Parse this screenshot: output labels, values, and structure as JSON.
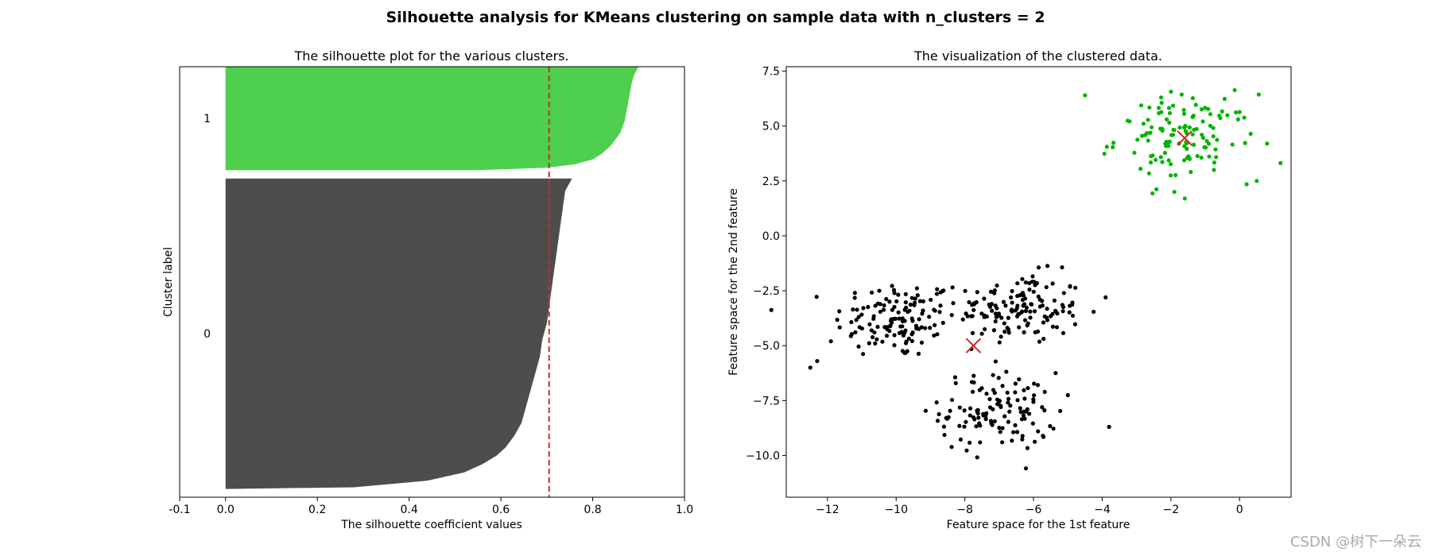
{
  "suptitle": "Silhouette analysis for KMeans clustering on sample data with n_clusters = 2",
  "watermark": "CSDN @树下一朵云",
  "colors": {
    "cluster0": "#4d4d4d",
    "cluster1": "#4ed04e",
    "scatter0": "#000000",
    "scatter1": "#00b400",
    "avg_line": "#d62728",
    "centers": "#d62728"
  },
  "chart_data": [
    {
      "type": "area",
      "title": "The silhouette plot for the various clusters.",
      "xlabel": "The silhouette coefficient values",
      "ylabel": "Cluster label",
      "xlim": [
        -0.1,
        1.0
      ],
      "ylim": [
        0,
        520
      ],
      "xticks": [
        "-0.1",
        "0.0",
        "0.2",
        "0.4",
        "0.6",
        "0.8",
        "1.0"
      ],
      "average_silhouette": 0.705,
      "clusters": [
        {
          "label": "0",
          "y_range": [
            10,
            385
          ],
          "profile_y": [
            10,
            12,
            20,
            30,
            40,
            50,
            60,
            75,
            90,
            110,
            130,
            150,
            170,
            190,
            210,
            230,
            250,
            270,
            290,
            310,
            330,
            350,
            370,
            385
          ],
          "profile_x": [
            0.0,
            0.28,
            0.44,
            0.52,
            0.56,
            0.59,
            0.61,
            0.63,
            0.645,
            0.655,
            0.665,
            0.675,
            0.685,
            0.69,
            0.7,
            0.705,
            0.71,
            0.715,
            0.72,
            0.725,
            0.73,
            0.735,
            0.74,
            0.755
          ]
        },
        {
          "label": "1",
          "y_range": [
            395,
            520
          ],
          "profile_y": [
            395,
            398,
            402,
            408,
            415,
            425,
            440,
            455,
            470,
            485,
            500,
            510,
            520
          ],
          "profile_x": [
            0.55,
            0.7,
            0.76,
            0.8,
            0.82,
            0.84,
            0.86,
            0.87,
            0.875,
            0.88,
            0.885,
            0.89,
            0.9
          ]
        }
      ]
    },
    {
      "type": "scatter",
      "title": "The visualization of the clustered data.",
      "xlabel": "Feature space for the 1st feature",
      "ylabel": "Feature space for the 2nd feature",
      "xlim": [
        -13.2,
        1.5
      ],
      "ylim": [
        -11.9,
        7.7
      ],
      "xticks": [
        "-12",
        "-10",
        "-8",
        "-6",
        "-4",
        "-2",
        "0"
      ],
      "yticks": [
        "7.5",
        "5.0",
        "2.5",
        "0.0",
        "-2.5",
        "-5.0",
        "-7.5",
        "-10.0"
      ],
      "centers": [
        {
          "x": -7.75,
          "y": -5.0
        },
        {
          "x": -1.6,
          "y": 4.45
        }
      ],
      "groups": [
        {
          "cx": -10.0,
          "cy": -3.8,
          "sx": 0.9,
          "sy": 0.9,
          "n": 130,
          "cluster": 0
        },
        {
          "cx": -6.4,
          "cy": -3.3,
          "sx": 0.9,
          "sy": 0.8,
          "n": 140,
          "cluster": 0
        },
        {
          "cx": -7.0,
          "cy": -8.0,
          "sx": 0.85,
          "sy": 0.9,
          "n": 120,
          "cluster": 0
        },
        {
          "cx": -1.6,
          "cy": 4.45,
          "sx": 1.0,
          "sy": 1.0,
          "n": 125,
          "cluster": 1
        }
      ],
      "outliers": [
        {
          "x": -12.5,
          "y": -6.0,
          "cluster": 0
        },
        {
          "x": -12.3,
          "y": -5.7,
          "cluster": 0
        },
        {
          "x": -11.9,
          "y": -4.8,
          "cluster": 0
        },
        {
          "x": -3.8,
          "y": -8.7,
          "cluster": 0
        },
        {
          "x": -3.9,
          "y": -2.8,
          "cluster": 0
        },
        {
          "x": -4.5,
          "y": 6.4,
          "cluster": 1
        },
        {
          "x": 0.8,
          "y": 4.2,
          "cluster": 1
        },
        {
          "x": 0.5,
          "y": 2.5,
          "cluster": 1
        },
        {
          "x": -1.9,
          "y": 2.0,
          "cluster": 1
        }
      ]
    }
  ]
}
